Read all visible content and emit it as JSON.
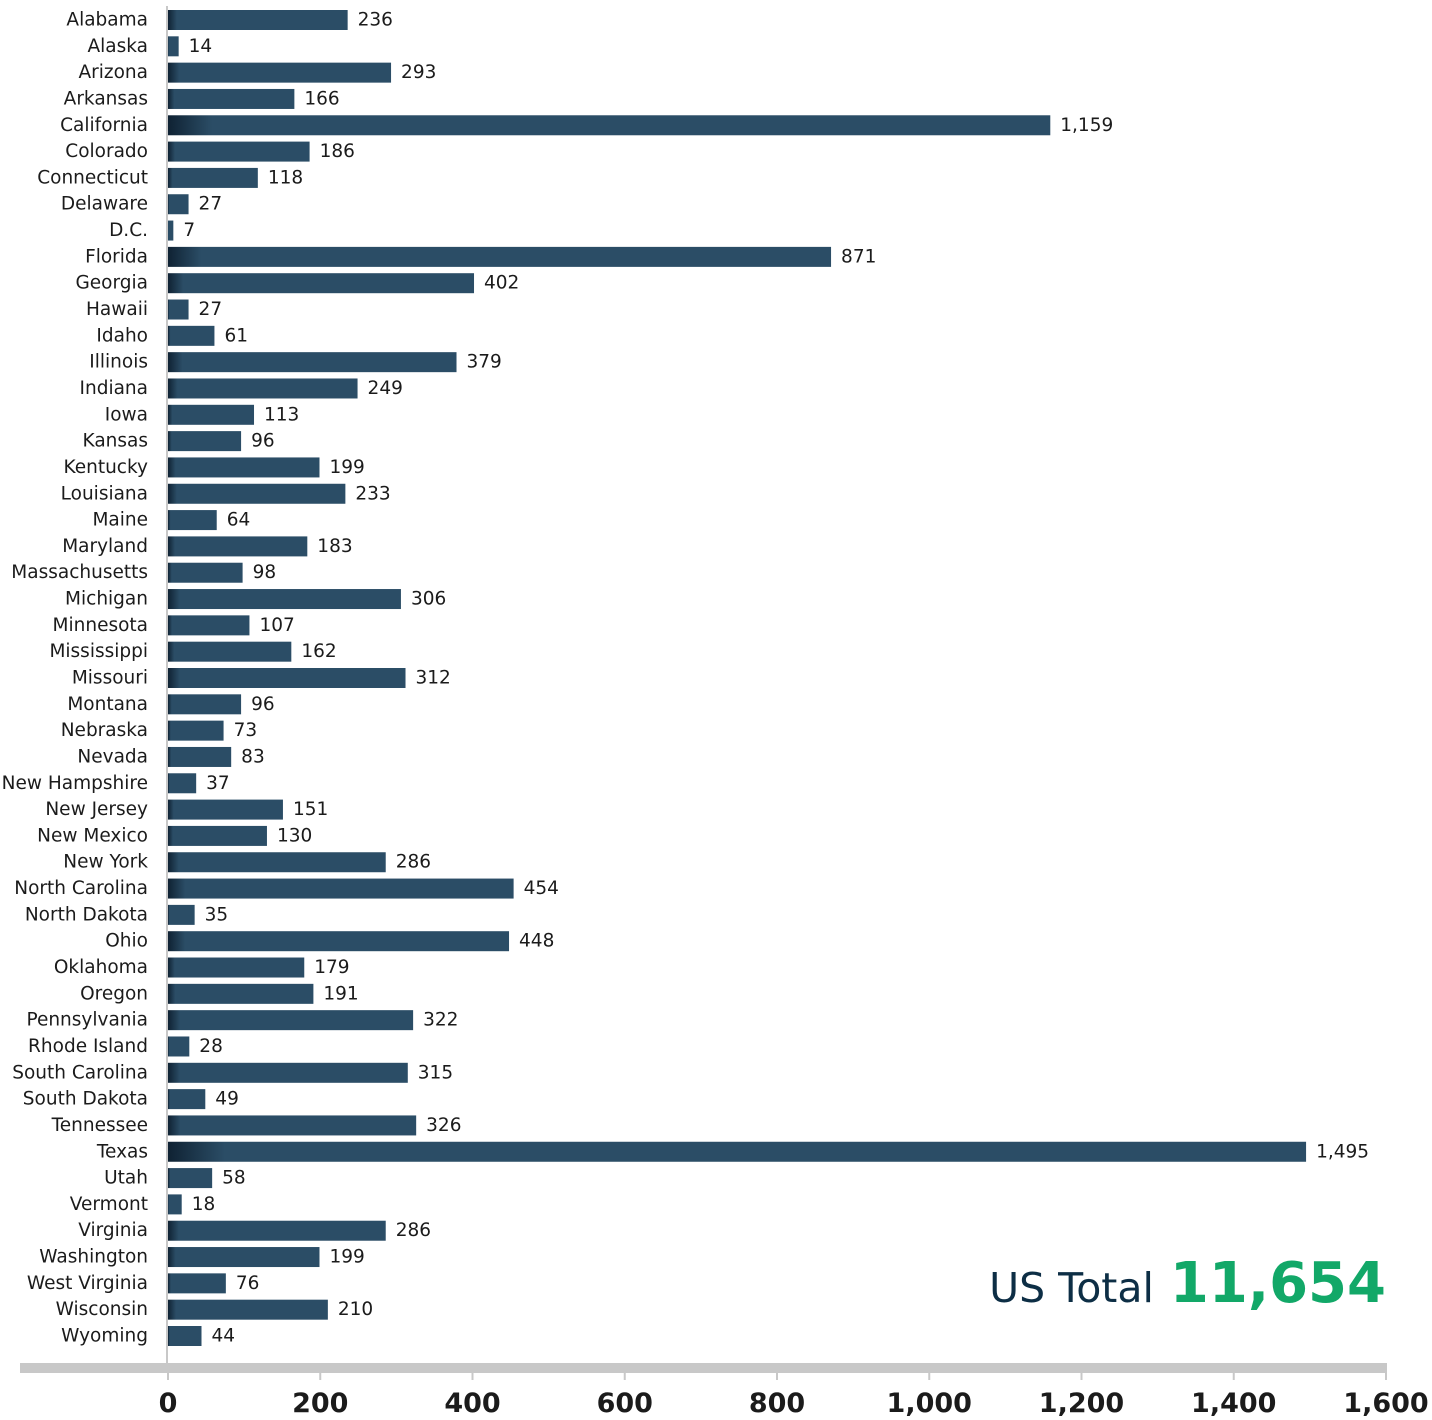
{
  "chart_data": {
    "type": "bar",
    "orientation": "horizontal",
    "categories": [
      "Alabama",
      "Alaska",
      "Arizona",
      "Arkansas",
      "California",
      "Colorado",
      "Connecticut",
      "Delaware",
      "D.C.",
      "Florida",
      "Georgia",
      "Hawaii",
      "Idaho",
      "Illinois",
      "Indiana",
      "Iowa",
      "Kansas",
      "Kentucky",
      "Louisiana",
      "Maine",
      "Maryland",
      "Massachusetts",
      "Michigan",
      "Minnesota",
      "Mississippi",
      "Missouri",
      "Montana",
      "Nebraska",
      "Nevada",
      "New Hampshire",
      "New Jersey",
      "New Mexico",
      "New York",
      "North Carolina",
      "North Dakota",
      "Ohio",
      "Oklahoma",
      "Oregon",
      "Pennsylvania",
      "Rhode Island",
      "South Carolina",
      "South Dakota",
      "Tennessee",
      "Texas",
      "Utah",
      "Vermont",
      "Virginia",
      "Washington",
      "West Virginia",
      "Wisconsin",
      "Wyoming"
    ],
    "values": [
      236,
      14,
      293,
      166,
      1159,
      186,
      118,
      27,
      7,
      871,
      402,
      27,
      61,
      379,
      249,
      113,
      96,
      199,
      233,
      64,
      183,
      98,
      306,
      107,
      162,
      312,
      96,
      73,
      83,
      37,
      151,
      130,
      286,
      454,
      35,
      448,
      179,
      191,
      322,
      28,
      315,
      49,
      326,
      1495,
      58,
      18,
      286,
      199,
      76,
      210,
      44
    ],
    "value_labels": [
      "236",
      "14",
      "293",
      "166",
      "1,159",
      "186",
      "118",
      "27",
      "7",
      "871",
      "402",
      "27",
      "61",
      "379",
      "249",
      "113",
      "96",
      "199",
      "233",
      "64",
      "183",
      "98",
      "306",
      "107",
      "162",
      "312",
      "96",
      "73",
      "83",
      "37",
      "151",
      "130",
      "286",
      "454",
      "35",
      "448",
      "179",
      "191",
      "322",
      "28",
      "315",
      "49",
      "326",
      "1,495",
      "58",
      "18",
      "286",
      "199",
      "76",
      "210",
      "44"
    ],
    "xlim": [
      0,
      1600
    ],
    "xticks": [
      0,
      200,
      400,
      600,
      800,
      1000,
      1200,
      1400,
      1600
    ],
    "xtick_labels": [
      "0",
      "200",
      "400",
      "600",
      "800",
      "1,000",
      "1,200",
      "1,400",
      "1,600"
    ],
    "title": "",
    "xlabel": "",
    "ylabel": "",
    "grid": false,
    "legend": "none",
    "colors": {
      "bar": "#2b4d66",
      "bar_dark": "#0f2233",
      "axis_bar": "#c8c8c8",
      "axis_line": "#c8c8c8",
      "text": "#1b1b1b",
      "total_prefix": "#0d2e45",
      "total_value": "#12a868"
    }
  },
  "total": {
    "prefix": "US Total",
    "value": "11,654"
  }
}
